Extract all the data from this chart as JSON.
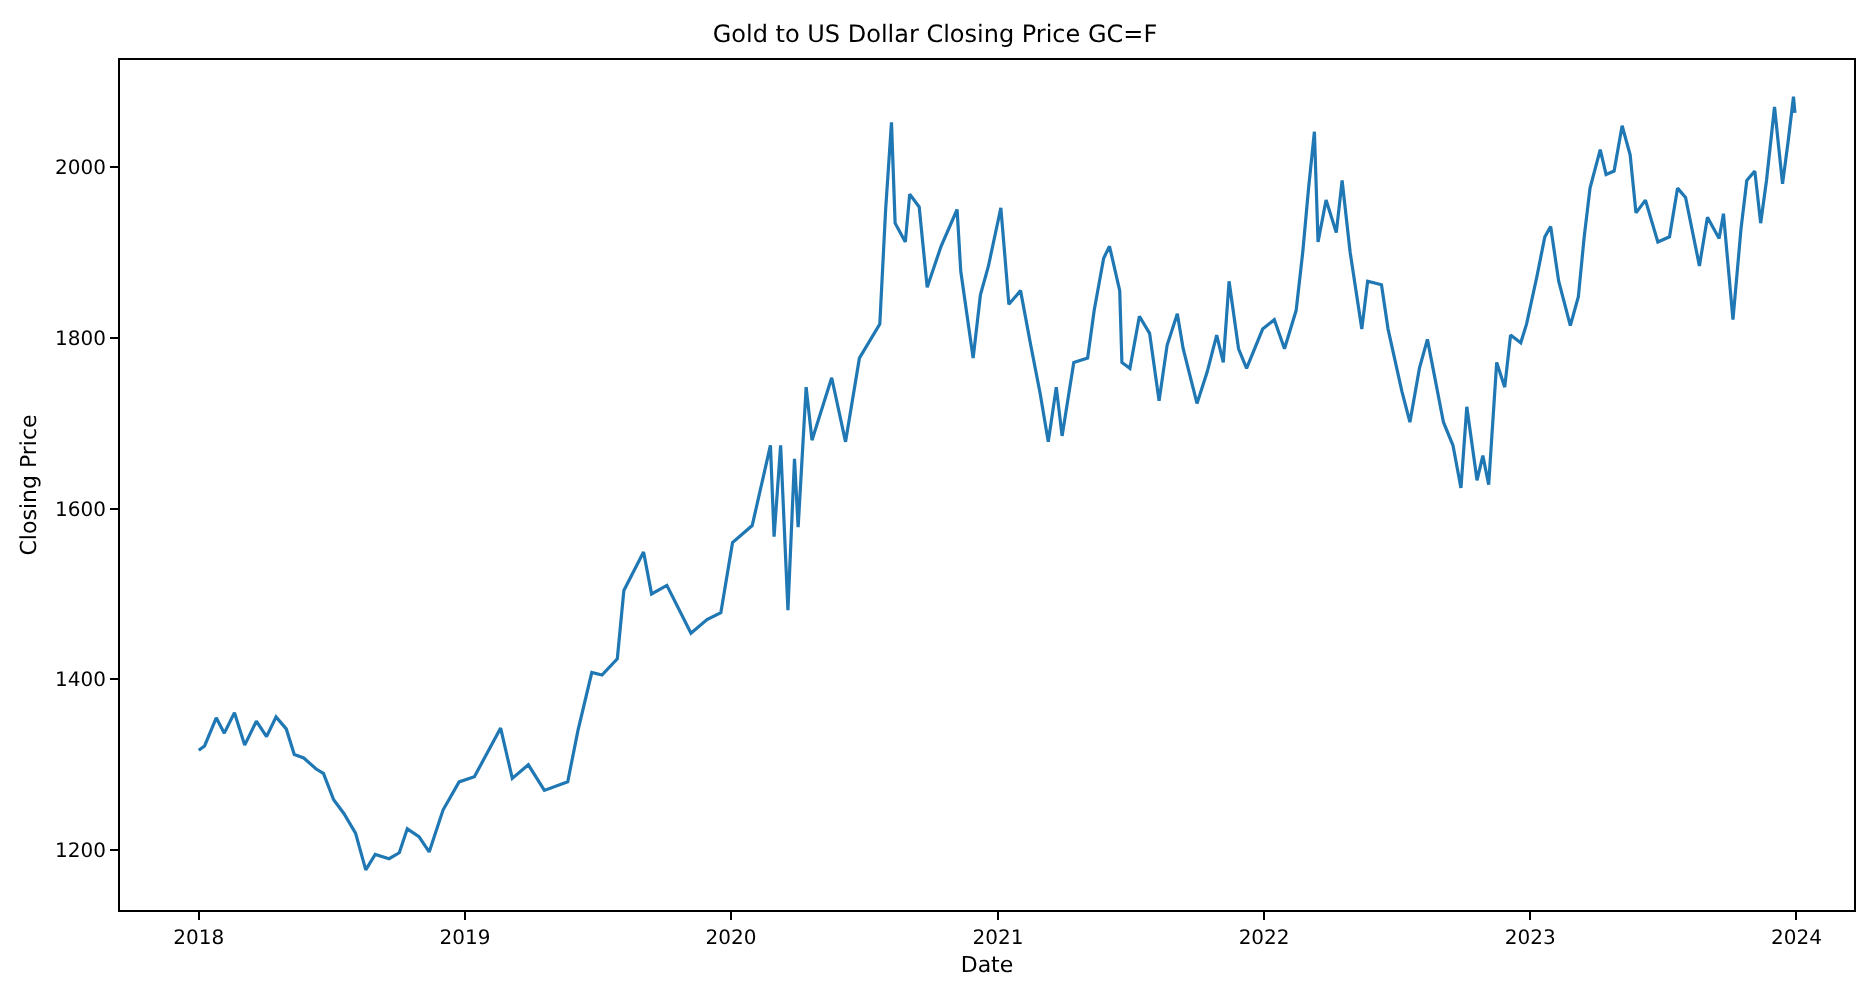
{
  "chart_data": {
    "type": "line",
    "title": "Gold to US Dollar Closing Price GC=F",
    "xlabel": "Date",
    "ylabel": "Closing Price",
    "x": [
      "2018-01-01",
      "2018-01-09",
      "2018-01-25",
      "2018-02-05",
      "2018-02-19",
      "2018-03-05",
      "2018-03-21",
      "2018-04-04",
      "2018-04-17",
      "2018-05-01",
      "2018-05-12",
      "2018-05-25",
      "2018-06-11",
      "2018-06-21",
      "2018-07-05",
      "2018-07-19",
      "2018-08-04",
      "2018-08-18",
      "2018-08-31",
      "2018-09-19",
      "2018-10-03",
      "2018-10-14",
      "2018-10-30",
      "2018-11-13",
      "2018-12-02",
      "2018-12-24",
      "2019-01-14",
      "2019-02-19",
      "2019-03-07",
      "2019-03-29",
      "2019-04-20",
      "2019-05-22",
      "2019-06-05",
      "2019-06-24",
      "2019-07-08",
      "2019-07-29",
      "2019-08-07",
      "2019-09-03",
      "2019-09-14",
      "2019-10-05",
      "2019-11-07",
      "2019-11-29",
      "2019-12-18",
      "2020-01-03",
      "2020-01-30",
      "2020-02-24",
      "2020-02-29",
      "2020-03-09",
      "2020-03-19",
      "2020-03-28",
      "2020-04-02",
      "2020-04-13",
      "2020-04-21",
      "2020-05-18",
      "2020-06-06",
      "2020-06-25",
      "2020-07-23",
      "2020-07-31",
      "2020-08-08",
      "2020-08-13",
      "2020-08-27",
      "2020-09-02",
      "2020-09-15",
      "2020-09-26",
      "2020-10-15",
      "2020-11-06",
      "2020-11-11",
      "2020-11-28",
      "2020-12-08",
      "2020-12-19",
      "2021-01-05",
      "2021-01-16",
      "2021-02-01",
      "2021-02-15",
      "2021-02-28",
      "2021-03-11",
      "2021-03-22",
      "2021-03-30",
      "2021-04-15",
      "2021-05-04",
      "2021-05-13",
      "2021-05-26",
      "2021-06-03",
      "2021-06-17",
      "2021-06-20",
      "2021-07-01",
      "2021-07-14",
      "2021-07-28",
      "2021-08-10",
      "2021-08-21",
      "2021-09-04",
      "2021-09-12",
      "2021-10-01",
      "2021-10-15",
      "2021-10-28",
      "2021-11-06",
      "2021-11-14",
      "2021-11-27",
      "2021-12-08",
      "2021-12-30",
      "2022-01-15",
      "2022-01-29",
      "2022-02-14",
      "2022-02-23",
      "2022-03-03",
      "2022-03-11",
      "2022-03-16",
      "2022-03-27",
      "2022-04-10",
      "2022-04-18",
      "2022-04-29",
      "2022-05-15",
      "2022-05-23",
      "2022-06-11",
      "2022-06-20",
      "2022-07-09",
      "2022-07-20",
      "2022-08-02",
      "2022-08-13",
      "2022-09-04",
      "2022-09-17",
      "2022-09-28",
      "2022-10-06",
      "2022-10-20",
      "2022-10-28",
      "2022-11-05",
      "2022-11-16",
      "2022-11-27",
      "2022-12-05",
      "2022-12-19",
      "2022-12-27",
      "2023-01-10",
      "2023-01-21",
      "2023-01-29",
      "2023-02-09",
      "2023-02-25",
      "2023-03-08",
      "2023-03-16",
      "2023-03-24",
      "2023-04-07",
      "2023-04-15",
      "2023-04-26",
      "2023-05-07",
      "2023-05-18",
      "2023-05-26",
      "2023-06-08",
      "2023-06-25",
      "2023-07-11",
      "2023-07-22",
      "2023-08-02",
      "2023-08-21",
      "2023-09-01",
      "2023-09-17",
      "2023-09-23",
      "2023-10-06",
      "2023-10-17",
      "2023-10-25",
      "2023-11-05",
      "2023-11-13",
      "2023-11-21",
      "2023-12-02",
      "2023-12-13",
      "2023-12-21",
      "2023-12-28",
      "2023-12-30"
    ],
    "series": [
      {
        "color": "#1f77b4",
        "values": [
          1317,
          1322,
          1355,
          1337,
          1361,
          1323,
          1351,
          1333,
          1356,
          1342,
          1312,
          1308,
          1295,
          1290,
          1259,
          1243,
          1220,
          1177,
          1195,
          1190,
          1197,
          1225,
          1216,
          1198,
          1247,
          1280,
          1286,
          1343,
          1284,
          1300,
          1270,
          1280,
          1340,
          1408,
          1405,
          1424,
          1504,
          1549,
          1500,
          1510,
          1454,
          1470,
          1478,
          1560,
          1580,
          1674,
          1567,
          1674,
          1481,
          1658,
          1578,
          1742,
          1680,
          1753,
          1678,
          1776,
          1816,
          1950,
          2052,
          1934,
          1912,
          1968,
          1953,
          1859,
          1907,
          1950,
          1878,
          1776,
          1850,
          1884,
          1952,
          1839,
          1855,
          1791,
          1734,
          1678,
          1742,
          1685,
          1771,
          1776,
          1832,
          1893,
          1907,
          1855,
          1771,
          1764,
          1825,
          1805,
          1726,
          1791,
          1828,
          1787,
          1723,
          1760,
          1803,
          1771,
          1866,
          1787,
          1764,
          1810,
          1821,
          1787,
          1832,
          1900,
          1975,
          2041,
          1912,
          1961,
          1923,
          1984,
          1900,
          1810,
          1866,
          1862,
          1810,
          1737,
          1701,
          1764,
          1798,
          1701,
          1674,
          1624,
          1719,
          1633,
          1662,
          1628,
          1771,
          1742,
          1803,
          1794,
          1816,
          1871,
          1918,
          1930,
          1866,
          1814,
          1848,
          1918,
          1975,
          2020,
          1991,
          1995,
          2048,
          2014,
          1946,
          1961,
          1912,
          1918,
          1975,
          1964,
          1884,
          1941,
          1916,
          1945,
          1821,
          1927,
          1984,
          1995,
          1934,
          1984,
          2070,
          1980,
          2032,
          2082,
          2063
        ]
      }
    ],
    "xlim": [
      "2017-09-15",
      "2024-03-20"
    ],
    "xticks": [
      {
        "value": "2018-01-01",
        "label": "2018"
      },
      {
        "value": "2019-01-01",
        "label": "2019"
      },
      {
        "value": "2020-01-01",
        "label": "2020"
      },
      {
        "value": "2021-01-01",
        "label": "2021"
      },
      {
        "value": "2022-01-01",
        "label": "2022"
      },
      {
        "value": "2023-01-01",
        "label": "2023"
      },
      {
        "value": "2024-01-01",
        "label": "2024"
      }
    ],
    "ylim": [
      1130,
      2125
    ],
    "yticks": [
      1200,
      1400,
      1600,
      1800,
      2000
    ],
    "line_style": "solid",
    "marker": "none"
  }
}
